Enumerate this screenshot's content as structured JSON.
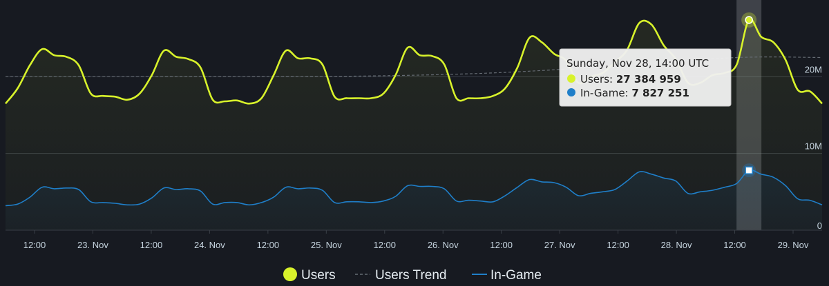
{
  "colors": {
    "background": "#171a21",
    "users": "#d8f22b",
    "in_game": "#1f7fc9",
    "trend": "#666c74",
    "grid": "#3a3f47"
  },
  "chart_data": {
    "type": "line",
    "ylim": [
      0,
      30000000
    ],
    "y_ticks": [
      {
        "value": 0,
        "label": "0"
      },
      {
        "value": 10000000,
        "label": "10M"
      },
      {
        "value": 20000000,
        "label": "20M"
      }
    ],
    "x_start_hour": -9,
    "x_end_hour": 151,
    "x_ticks": [
      {
        "hour": 12,
        "label": "12:00"
      },
      {
        "hour": 24,
        "label": "23. Nov"
      },
      {
        "hour": 36,
        "label": "12:00"
      },
      {
        "hour": 48,
        "label": "24. Nov"
      },
      {
        "hour": 60,
        "label": "12:00"
      },
      {
        "hour": 72,
        "label": "25. Nov"
      },
      {
        "hour": 84,
        "label": "12:00"
      },
      {
        "hour": 96,
        "label": "26. Nov"
      },
      {
        "hour": 108,
        "label": "12:00"
      },
      {
        "hour": 120,
        "label": "27. Nov"
      },
      {
        "hour": 132,
        "label": "12:00"
      },
      {
        "hour": 144,
        "label": "28. Nov"
      },
      {
        "hour": 156,
        "label": "12:00"
      },
      {
        "hour": 168,
        "label": "29. Nov"
      }
    ],
    "series": [
      {
        "name": "Users",
        "points": [
          [
            -9,
            16.5
          ],
          [
            -6,
            18.5
          ],
          [
            -3,
            21.5
          ],
          [
            0,
            23.6
          ],
          [
            3,
            22.8
          ],
          [
            6,
            22.6
          ],
          [
            9,
            21.5
          ],
          [
            12,
            17.8
          ],
          [
            15,
            17.5
          ],
          [
            18,
            17.4
          ],
          [
            21,
            17
          ],
          [
            24,
            17.8
          ],
          [
            27,
            20.2
          ],
          [
            30,
            23.4
          ],
          [
            33,
            22.6
          ],
          [
            36,
            22.3
          ],
          [
            39,
            21.2
          ],
          [
            42,
            17
          ],
          [
            45,
            16.8
          ],
          [
            48,
            16.9
          ],
          [
            51,
            16.5
          ],
          [
            54,
            17.2
          ],
          [
            57,
            20.2
          ],
          [
            60,
            23.4
          ],
          [
            63,
            22.4
          ],
          [
            66,
            22.4
          ],
          [
            69,
            21.6
          ],
          [
            72,
            17.4
          ],
          [
            75,
            17.2
          ],
          [
            78,
            17.2
          ],
          [
            81,
            17.2
          ],
          [
            84,
            17.8
          ],
          [
            87,
            20.2
          ],
          [
            90,
            23.8
          ],
          [
            93,
            22.8
          ],
          [
            96,
            22.7
          ],
          [
            99,
            21.6
          ],
          [
            102,
            17.2
          ],
          [
            105,
            17.2
          ],
          [
            108,
            17.2
          ],
          [
            111,
            17.5
          ],
          [
            114,
            18.5
          ],
          [
            117,
            21.2
          ],
          [
            120,
            25.1
          ],
          [
            123,
            24.5
          ],
          [
            126,
            23
          ],
          [
            129,
            22.1
          ],
          [
            132,
            19.2
          ],
          [
            135,
            20
          ],
          [
            138,
            20.5
          ],
          [
            141,
            21.9
          ],
          [
            144,
            23.5
          ],
          [
            147,
            27
          ],
          [
            150,
            26.8
          ],
          [
            153,
            24.1
          ],
          [
            156,
            22.3
          ],
          [
            159,
            19.2
          ],
          [
            162,
            19.2
          ],
          [
            165,
            20.2
          ],
          [
            168,
            20.5
          ],
          [
            171,
            21.6
          ],
          [
            174,
            27.4
          ],
          [
            177,
            25.2
          ],
          [
            180,
            24.5
          ],
          [
            183,
            22.2
          ],
          [
            186,
            18.3
          ],
          [
            189,
            18.1
          ],
          [
            192,
            16.5
          ]
        ]
      },
      {
        "name": "Users Trend",
        "points": [
          [
            -9,
            20
          ],
          [
            21,
            20
          ],
          [
            51,
            20
          ],
          [
            81,
            20.1
          ],
          [
            111,
            20.5
          ],
          [
            141,
            21.4
          ],
          [
            171,
            22.5
          ],
          [
            192,
            22.5
          ]
        ]
      },
      {
        "name": "In-Game",
        "points": [
          [
            -9,
            3.2
          ],
          [
            -6,
            3.4
          ],
          [
            -3,
            4.3
          ],
          [
            0,
            5.6
          ],
          [
            3,
            5.4
          ],
          [
            6,
            5.5
          ],
          [
            9,
            5.3
          ],
          [
            12,
            3.7
          ],
          [
            15,
            3.6
          ],
          [
            18,
            3.5
          ],
          [
            21,
            3.3
          ],
          [
            24,
            3.4
          ],
          [
            27,
            4.2
          ],
          [
            30,
            5.5
          ],
          [
            33,
            5.3
          ],
          [
            36,
            5.4
          ],
          [
            39,
            5.1
          ],
          [
            42,
            3.4
          ],
          [
            45,
            3.6
          ],
          [
            48,
            3.6
          ],
          [
            51,
            3.3
          ],
          [
            54,
            3.6
          ],
          [
            57,
            4.3
          ],
          [
            60,
            5.6
          ],
          [
            63,
            5.4
          ],
          [
            66,
            5.5
          ],
          [
            69,
            5.2
          ],
          [
            72,
            3.6
          ],
          [
            75,
            3.7
          ],
          [
            78,
            3.7
          ],
          [
            81,
            3.6
          ],
          [
            84,
            3.8
          ],
          [
            87,
            4.4
          ],
          [
            90,
            5.8
          ],
          [
            93,
            5.7
          ],
          [
            96,
            5.7
          ],
          [
            99,
            5.4
          ],
          [
            102,
            3.8
          ],
          [
            105,
            3.9
          ],
          [
            108,
            3.8
          ],
          [
            111,
            3.7
          ],
          [
            114,
            4.5
          ],
          [
            117,
            5.6
          ],
          [
            120,
            6.6
          ],
          [
            123,
            6.3
          ],
          [
            126,
            6.2
          ],
          [
            129,
            5.6
          ],
          [
            132,
            4.5
          ],
          [
            135,
            4.8
          ],
          [
            138,
            5
          ],
          [
            141,
            5.3
          ],
          [
            144,
            6.4
          ],
          [
            147,
            7.6
          ],
          [
            150,
            7.3
          ],
          [
            153,
            6.8
          ],
          [
            156,
            6.4
          ],
          [
            159,
            4.8
          ],
          [
            162,
            5
          ],
          [
            165,
            5.2
          ],
          [
            168,
            5.6
          ],
          [
            171,
            6.1
          ],
          [
            174,
            7.8
          ],
          [
            177,
            7.3
          ],
          [
            180,
            6.9
          ],
          [
            183,
            5.8
          ],
          [
            186,
            4.1
          ],
          [
            189,
            3.9
          ],
          [
            192,
            3.3
          ]
        ]
      }
    ],
    "highlight_hour": 174,
    "tooltip": {
      "title": "Sunday, Nov 28, 14:00 UTC",
      "rows": [
        {
          "label": "Users: ",
          "value": "27 384 959"
        },
        {
          "label": "In-Game: ",
          "value": "7 827 251"
        }
      ]
    },
    "legend": [
      {
        "label": "Users"
      },
      {
        "label": "Users Trend"
      },
      {
        "label": "In-Game"
      }
    ]
  }
}
